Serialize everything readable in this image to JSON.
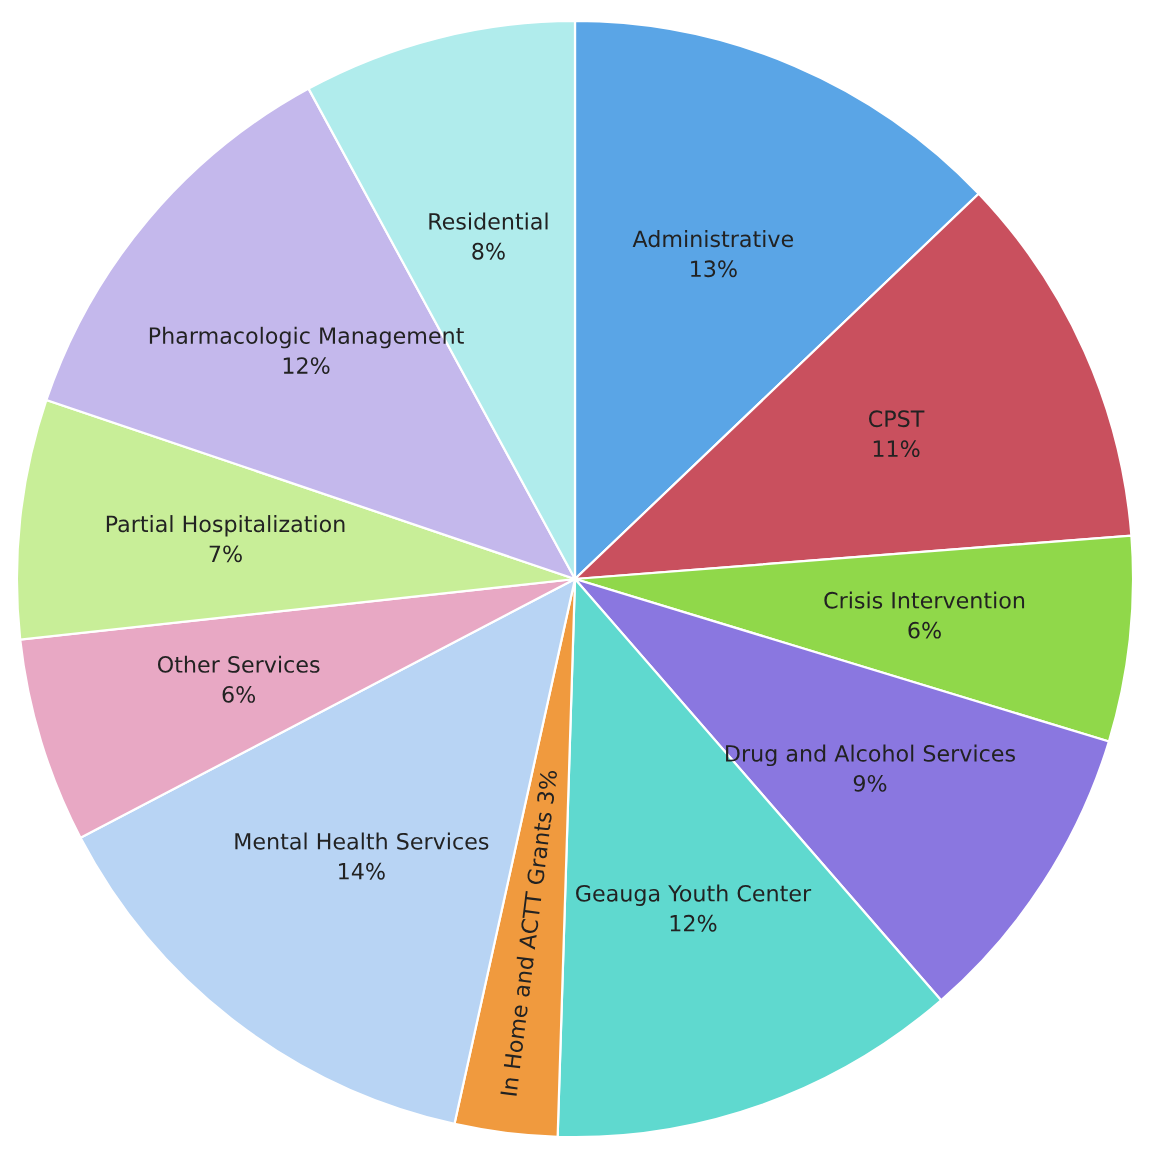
{
  "chart_data": {
    "type": "pie",
    "categories": [
      "Administrative",
      "CPST",
      "Crisis Intervention",
      "Drug and Alcohol Services",
      "Geauga Youth Center",
      "In Home and ACTT Grants",
      "Mental Health Services",
      "Other Services",
      "Partial Hospitalization",
      "Pharmacologic Management",
      "Residential"
    ],
    "values": [
      13,
      11,
      6,
      9,
      12,
      3,
      14,
      6,
      7,
      12,
      8
    ],
    "value_labels": [
      "13%",
      "11%",
      "6%",
      "9%",
      "12%",
      "3%",
      "14%",
      "6%",
      "7%",
      "12%",
      "8%"
    ],
    "colors": [
      "#5aa5e6",
      "#c9505e",
      "#90d84a",
      "#8a77e0",
      "#5fd9cf",
      "#f09a3e",
      "#b8d4f4",
      "#e8a8c4",
      "#c8ee98",
      "#c4b8ec",
      "#b0ecec"
    ],
    "legend": false
  }
}
